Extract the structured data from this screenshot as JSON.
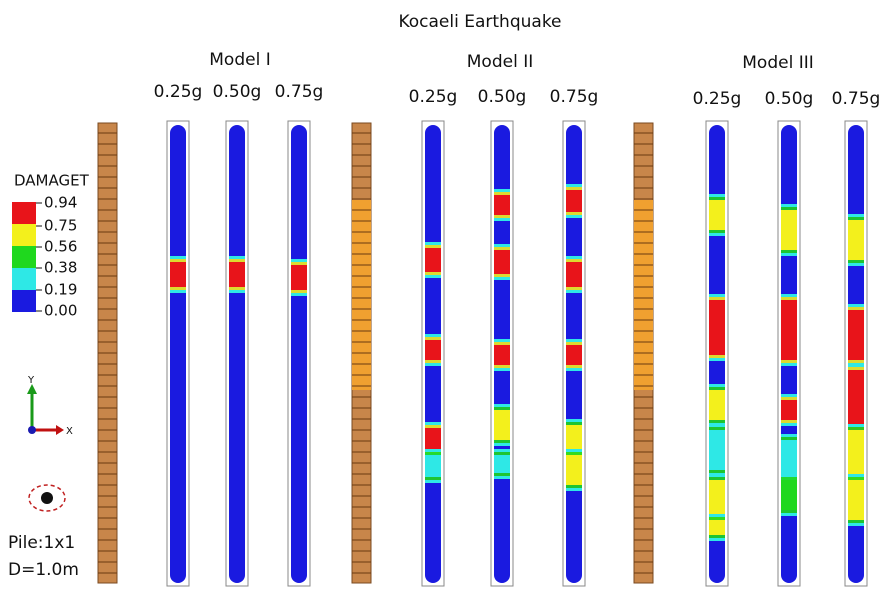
{
  "title": "Kocaeli Earthquake",
  "models": [
    {
      "name": "Model I",
      "pga": [
        "0.25g",
        "0.50g",
        "0.75g"
      ]
    },
    {
      "name": "Model II",
      "pga": [
        "0.25g",
        "0.50g",
        "0.75g"
      ]
    },
    {
      "name": "Model III",
      "pga": [
        "0.25g",
        "0.50g",
        "0.75g"
      ]
    }
  ],
  "legend": {
    "title": "DAMAGET",
    "labels": [
      "0.94",
      "0.75",
      "0.56",
      "0.38",
      "0.19",
      "0.00"
    ]
  },
  "axes": {
    "y": "Y",
    "x": "X"
  },
  "pile_info": [
    "Pile:1x1",
    "D=1.0m"
  ]
}
